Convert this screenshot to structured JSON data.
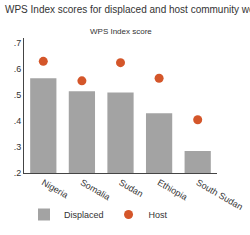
{
  "chart_data": {
    "type": "bar",
    "title": "WPS Index scores for displaced and host community women",
    "y_label": "WPS Index score",
    "categories": [
      "Nigeria",
      "Somalia",
      "Sudan",
      "Ethiopia",
      "South Sudan"
    ],
    "series": [
      {
        "name": "Displaced",
        "type": "bar",
        "color": "#a3a3a3",
        "values": [
          0.565,
          0.515,
          0.51,
          0.43,
          0.285
        ]
      },
      {
        "name": "Host",
        "type": "scatter",
        "marker": "circle",
        "color": "#d4562a",
        "values": [
          0.63,
          0.555,
          0.625,
          0.565,
          0.405
        ]
      }
    ],
    "ylim": [
      0.2,
      0.72
    ],
    "yticks": [
      {
        "value": 0.2,
        "label": ".2"
      },
      {
        "value": 0.3,
        "label": ".3"
      },
      {
        "value": 0.4,
        "label": ".4"
      },
      {
        "value": 0.5,
        "label": ".5"
      },
      {
        "value": 0.6,
        "label": ".6"
      },
      {
        "value": 0.7,
        "label": ".7"
      }
    ],
    "grid": false,
    "legend": "bottom"
  }
}
